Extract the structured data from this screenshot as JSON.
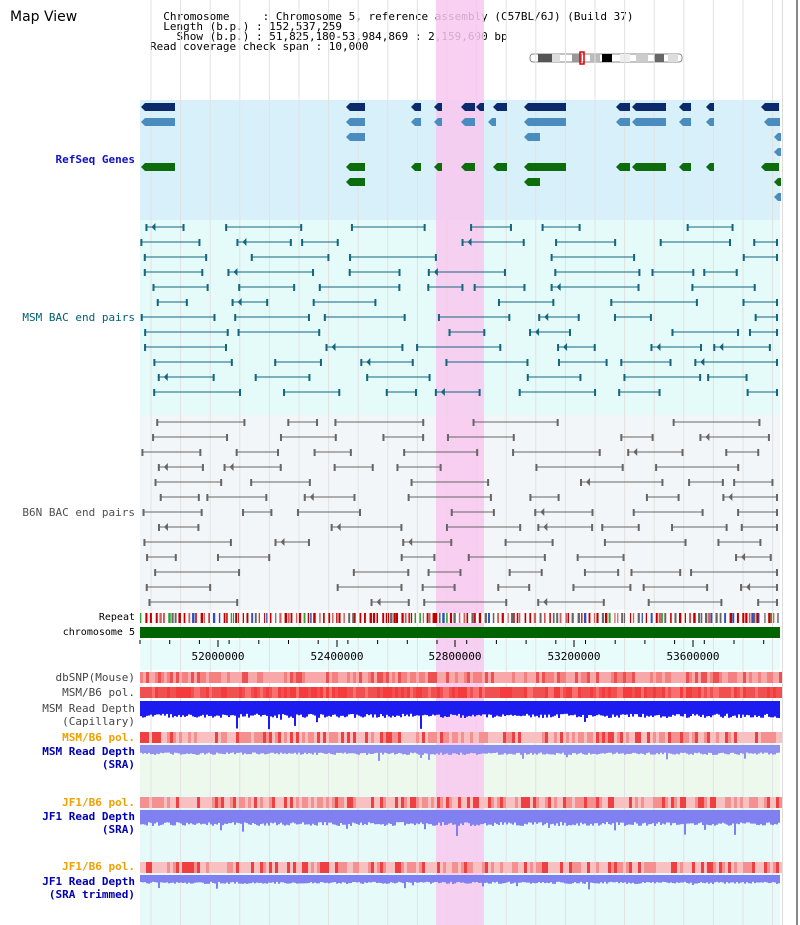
{
  "header": {
    "title": "Map View",
    "info_lines": [
      "  Chromosome     : Chromosome 5, reference assembly (C57BL/6J) (Build 37)",
      "  Length (b.p.) : 152,537,259",
      "    Show (b.p.) : 51,825,180-53,984,869 : 2,159,690 bp",
      "Read coverage check span : 10,000"
    ]
  },
  "tracks": {
    "refseq": "RefSeq Genes",
    "msm_bac": "MSM BAC end pairs",
    "b6n_bac": "B6N BAC end pairs",
    "repeat": "Repeat",
    "chromosome": "chromosome 5",
    "dbsnp": "dbSNP(Mouse)",
    "msm_b6_pol": "MSM/B6 pol.",
    "msm_depth_cap_1": "MSM Read Depth",
    "msm_depth_cap_2": "(Capillary)",
    "msm_b6_pol_2": "MSM/B6 pol.",
    "msm_depth_sra_1": "MSM Read Depth",
    "msm_depth_sra_2": "(SRA)",
    "jf1_b6_pol": "JF1/B6 pol.",
    "jf1_depth_sra_1": "JF1 Read Depth",
    "jf1_depth_sra_2": "(SRA)",
    "jf1_b6_pol_2": "JF1/B6 pol.",
    "jf1_depth_trim_1": "JF1 Read Depth",
    "jf1_depth_trim_2": "(SRA trimmed)"
  },
  "axis_ticks": [
    "52000000",
    "52400000",
    "52800000",
    "53200000",
    "53600000"
  ],
  "colors": {
    "refseq_bg": "#d8f0fa",
    "msm_bg": "#e4fbf9",
    "b6n_bg": "#f3f6f9",
    "highlight": "#f8c8ee",
    "refseq_label": "#1010c8",
    "msm_label": "#006070",
    "b6n_label": "#505050",
    "orange_label": "#f0a000",
    "blue_label": "#0000b0",
    "gene_dark": "#0b2a6b",
    "gene_mid": "#4a8cbd",
    "gene_green": "#0d6d0d",
    "msm_line": "#15657e",
    "b6n_line": "#666666",
    "chrom": "#006400"
  }
}
